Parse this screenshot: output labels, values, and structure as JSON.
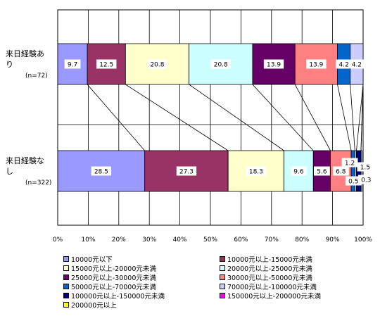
{
  "chart_data": {
    "type": "bar",
    "orientation": "horizontal-stacked-100",
    "categories": [
      {
        "label_lines": [
          "来日経験あ",
          "り",
          "(n=72)"
        ]
      },
      {
        "label_lines": [
          "来日経験な",
          "し",
          "(n=322)"
        ]
      }
    ],
    "x_ticks": [
      "0%",
      "10%",
      "20%",
      "30%",
      "40%",
      "50%",
      "60%",
      "70%",
      "80%",
      "90%",
      "100%"
    ],
    "xlim": [
      0,
      100
    ],
    "grid": true,
    "legend_position": "bottom",
    "series": [
      {
        "name": "10000元以下",
        "color": "#9999ff",
        "values": [
          9.7,
          28.5
        ],
        "labels": [
          "9.7",
          "28.5"
        ]
      },
      {
        "name": "10000元以上-15000元未満",
        "color": "#993366",
        "values": [
          12.5,
          27.3
        ],
        "labels": [
          "12.5",
          "27.3"
        ]
      },
      {
        "name": "15000元以上-20000元未満",
        "color": "#ffffcc",
        "values": [
          20.8,
          18.3
        ],
        "labels": [
          "20.8",
          "18.3"
        ]
      },
      {
        "name": "20000元以上-25000元未満",
        "color": "#ccffff",
        "values": [
          20.8,
          9.6
        ],
        "labels": [
          "20.8",
          "9.6"
        ]
      },
      {
        "name": "25000元以上-30000元未満",
        "color": "#660066",
        "values": [
          13.9,
          5.6
        ],
        "labels": [
          "13.9",
          "5.6"
        ]
      },
      {
        "name": "30000元以上-50000元未満",
        "color": "#ff8080",
        "values": [
          13.9,
          6.8
        ],
        "labels": [
          "13.9",
          "6.8"
        ]
      },
      {
        "name": "50000元以上-70000元未満",
        "color": "#0066cc",
        "values": [
          4.2,
          1.2
        ],
        "labels": [
          "4.2",
          "1.2"
        ]
      },
      {
        "name": "70000元以上-100000元未満",
        "color": "#ccccff",
        "values": [
          4.2,
          0.5
        ],
        "labels": [
          "4.2",
          "0.5"
        ]
      },
      {
        "name": "100000元以上-150000元未満",
        "color": "#000080",
        "values": [
          0,
          1.5
        ],
        "labels": [
          "",
          "1.5"
        ]
      },
      {
        "name": "150000元以上-200000元未満",
        "color": "#ff00ff",
        "values": [
          0,
          0
        ],
        "labels": [
          "",
          ""
        ]
      },
      {
        "name": "200000元以上",
        "color": "#ffff00",
        "values": [
          0,
          0.3
        ],
        "labels": [
          "",
          "0.3"
        ]
      }
    ]
  }
}
